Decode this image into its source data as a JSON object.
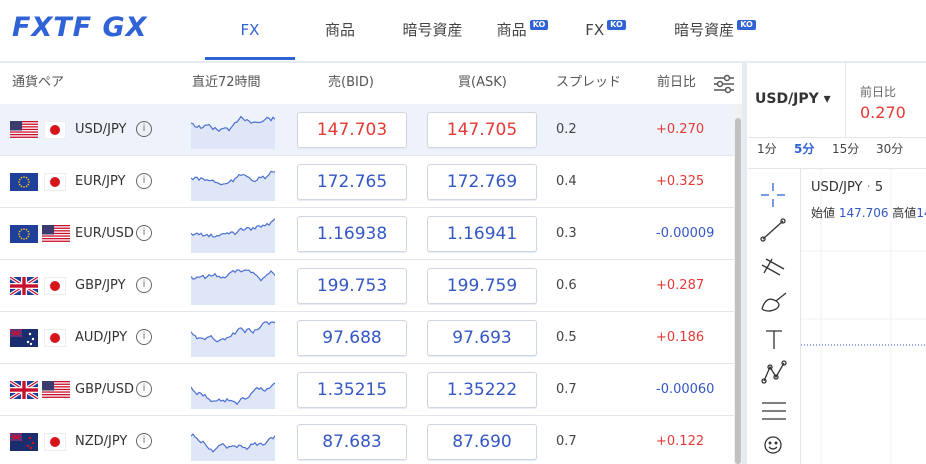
{
  "header": {
    "logo": "FXTF GX",
    "tabs": [
      {
        "label": "FX"
      },
      {
        "label": "商品"
      },
      {
        "label": "暗号資産"
      },
      {
        "label": "商品",
        "badge": "KO"
      },
      {
        "label": "FX",
        "badge": "KO"
      },
      {
        "label": "暗号資産",
        "badge": "KO"
      }
    ],
    "active_tab": 0
  },
  "table": {
    "columns": [
      "通貨ペア",
      "直近72時間",
      "売(BID)",
      "買(ASK)",
      "スプレッド",
      "前日比"
    ],
    "rows": [
      {
        "pair": "USD/JPY",
        "bid": "147.703",
        "ask": "147.705",
        "spread": "0.2",
        "change": "+0.270",
        "price_color": "#e53935"
      },
      {
        "pair": "EUR/JPY",
        "bid": "172.765",
        "ask": "172.769",
        "spread": "0.4",
        "change": "+0.325",
        "price_color": "#3557c5"
      },
      {
        "pair": "EUR/USD",
        "bid": "1.16938",
        "ask": "1.16941",
        "spread": "0.3",
        "change": "-0.00009",
        "price_color": "#3557c5"
      },
      {
        "pair": "GBP/JPY",
        "bid": "199.753",
        "ask": "199.759",
        "spread": "0.6",
        "change": "+0.287",
        "price_color": "#3557c5"
      },
      {
        "pair": "AUD/JPY",
        "bid": "97.688",
        "ask": "97.693",
        "spread": "0.5",
        "change": "+0.186",
        "price_color": "#3557c5"
      },
      {
        "pair": "GBP/USD",
        "bid": "1.35215",
        "ask": "1.35222",
        "spread": "0.7",
        "change": "-0.00060",
        "price_color": "#3557c5"
      },
      {
        "pair": "NZD/JPY",
        "bid": "87.683",
        "ask": "87.690",
        "spread": "0.7",
        "change": "+0.122",
        "price_color": "#3557c5"
      }
    ]
  },
  "panel": {
    "symbol": "USD/JPY",
    "prev_label": "前日比",
    "prev_value": "0.270",
    "timeframes": [
      "1分",
      "5分",
      "15分",
      "30分"
    ],
    "active_timeframe": 1,
    "legend": {
      "symbol": "USD/JPY",
      "interval": "5",
      "open_label": "始値",
      "open": "147.706",
      "high_label": "高値",
      "high": "14"
    }
  }
}
